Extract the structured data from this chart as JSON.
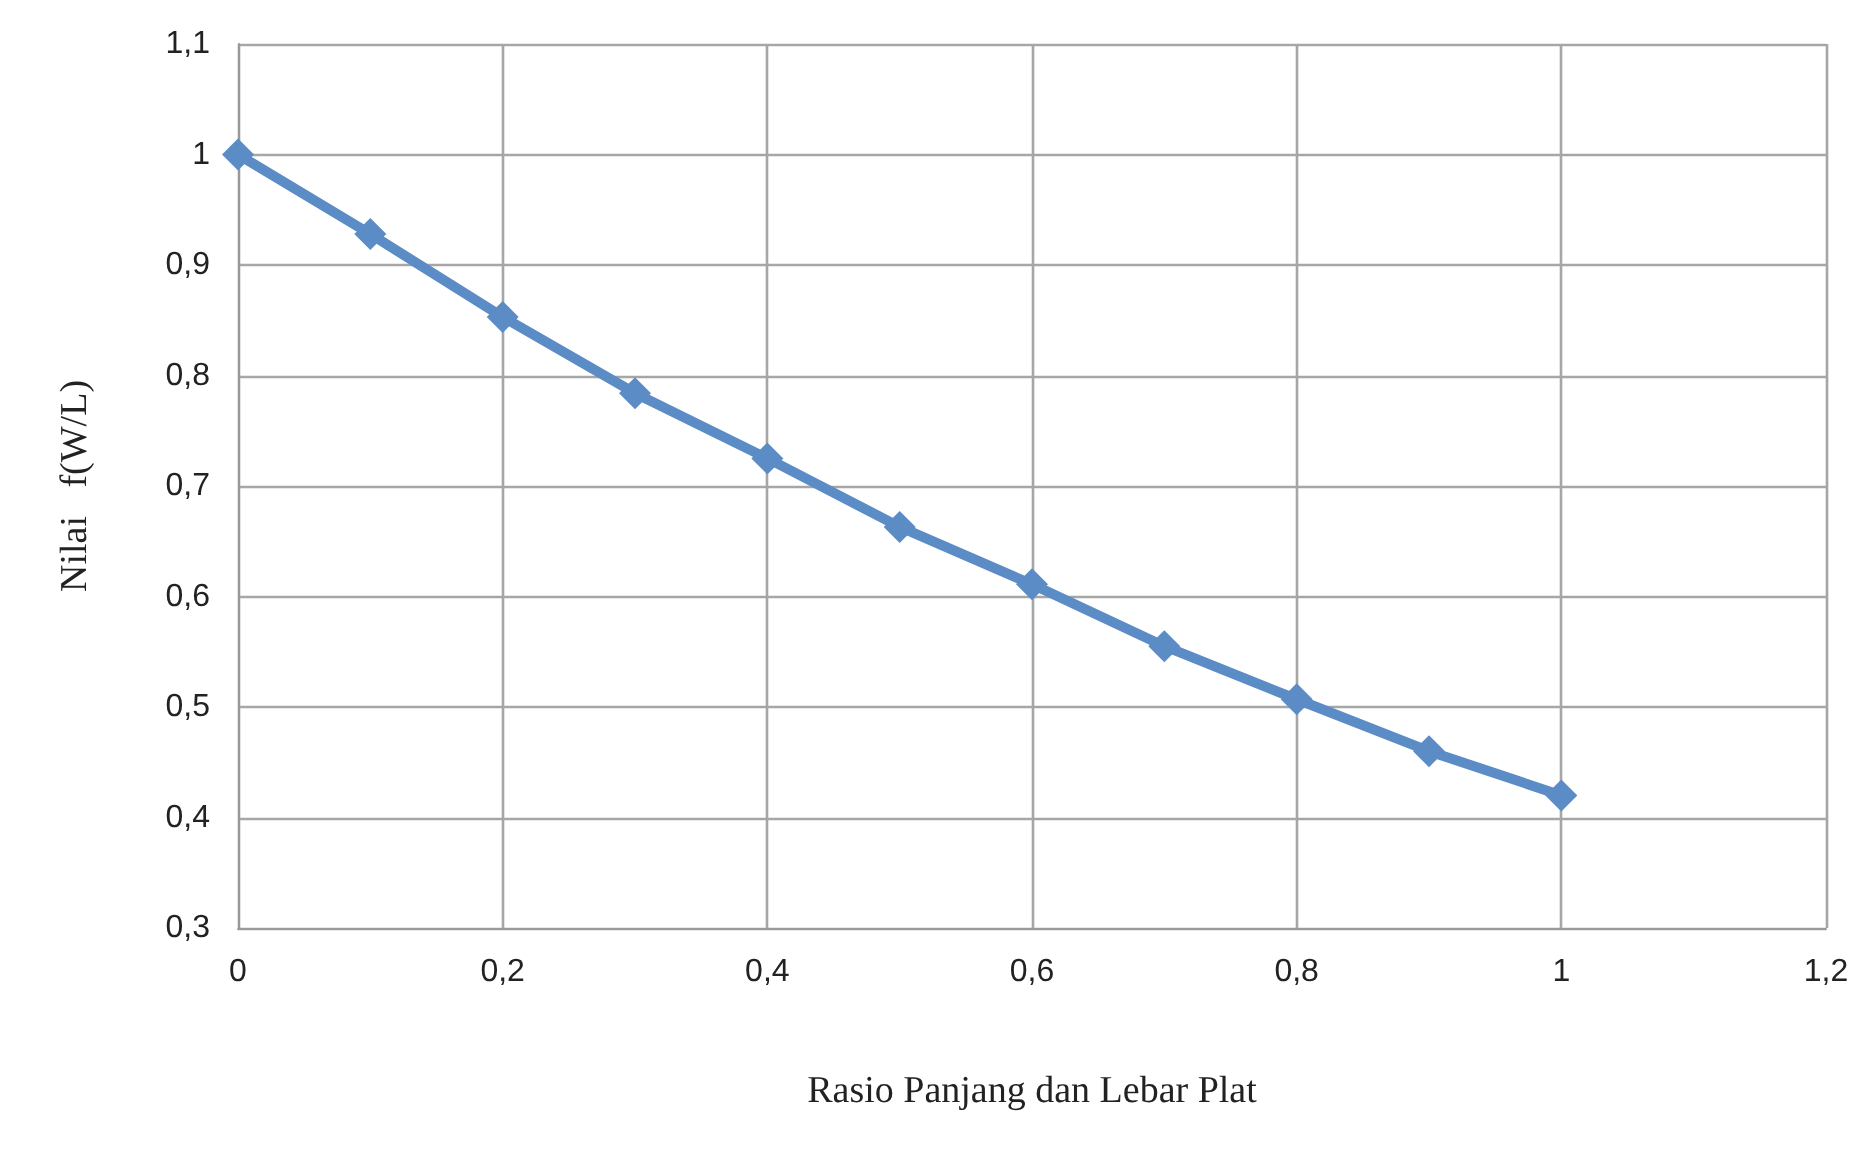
{
  "chart_data": {
    "type": "line",
    "xlabel": "Rasio Panjang dan Lebar Plat",
    "ylabel": "Nilai   f(W/L)",
    "x": [
      0,
      0.1,
      0.2,
      0.3,
      0.4,
      0.5,
      0.6,
      0.7,
      0.8,
      0.9,
      1
    ],
    "series": [
      {
        "color": "#5b8cc6",
        "values": [
          1.0,
          0.928,
          0.853,
          0.784,
          0.725,
          0.663,
          0.611,
          0.555,
          0.507,
          0.46,
          0.42
        ]
      }
    ],
    "xlim": [
      0,
      1.2
    ],
    "xticks": [
      0,
      {
        "value": 0.2,
        "label": "0,2"
      },
      {
        "value": 0.4,
        "label": "0,4"
      },
      {
        "value": 0.6,
        "label": "0,6"
      },
      {
        "value": 0.8,
        "label": "0,8"
      },
      1,
      {
        "value": 1.2,
        "label": "1,2"
      }
    ],
    "ylim": [
      0.3,
      1.1
    ],
    "yticks": [
      {
        "value": 0.3,
        "label": "0,3"
      },
      {
        "value": 0.4,
        "label": "0,4"
      },
      {
        "value": 0.5,
        "label": "0,5"
      },
      {
        "value": 0.6,
        "label": "0,6"
      },
      {
        "value": 0.7,
        "label": "0,7"
      },
      {
        "value": 0.8,
        "label": "0,8"
      },
      {
        "value": 0.9,
        "label": "0,9"
      },
      1,
      {
        "value": 1.1,
        "label": "1,1"
      }
    ],
    "grid": true,
    "marker": "diamond",
    "line_style": "solid"
  }
}
